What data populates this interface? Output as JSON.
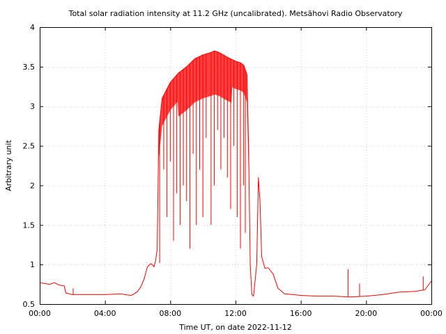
{
  "chart_data": {
    "type": "line",
    "title": "Total solar radiation intensity at 11.2 GHz (uncalibrated). Metsähovi Radio Observatory",
    "xlabel": "Time UT, on date 2022-11-12",
    "ylabel": "Arbitrary unit",
    "xlim": [
      0,
      24
    ],
    "ylim": [
      0.5,
      4
    ],
    "x_ticks": [
      0,
      4,
      8,
      12,
      16,
      20,
      24
    ],
    "x_tick_labels": [
      "00:00",
      "04:00",
      "08:00",
      "12:00",
      "16:00",
      "20:00",
      "00:00"
    ],
    "y_ticks": [
      0.5,
      1,
      1.5,
      2,
      2.5,
      3,
      3.5,
      4
    ],
    "y_tick_labels": [
      "0.5",
      "1",
      "1.5",
      "2",
      "2.5",
      "3",
      "3.5",
      "4"
    ],
    "grid": true,
    "legend": "none",
    "series": [
      {
        "color": "#ff0000",
        "x": [
          0.0,
          0.3,
          0.6,
          0.9,
          1.2,
          1.5,
          1.6,
          2.0,
          3.0,
          4.0,
          5.0,
          5.2,
          5.6,
          5.8,
          6.0,
          6.2,
          6.4,
          6.6,
          6.8,
          6.9,
          7.0,
          7.1,
          7.2,
          7.3,
          7.5,
          8.0,
          8.5,
          9.0,
          9.5,
          10.0,
          10.5,
          10.7,
          11.0,
          11.5,
          12.0,
          12.3,
          12.5,
          12.7,
          12.8,
          12.9,
          13.0,
          13.1,
          13.3,
          13.4,
          13.5,
          13.6,
          13.8,
          14.0,
          14.3,
          14.6,
          15.0,
          16.0,
          17.0,
          18.0,
          19.0,
          20.0,
          21.0,
          22.0,
          23.0,
          23.6,
          24.0
        ],
        "y": [
          0.77,
          0.76,
          0.75,
          0.77,
          0.74,
          0.73,
          0.64,
          0.62,
          0.62,
          0.62,
          0.63,
          0.62,
          0.61,
          0.63,
          0.66,
          0.72,
          0.82,
          0.97,
          1.01,
          1.0,
          0.97,
          1.05,
          1.2,
          2.7,
          3.1,
          3.3,
          3.42,
          3.5,
          3.6,
          3.65,
          3.68,
          3.7,
          3.68,
          3.62,
          3.57,
          3.55,
          3.52,
          3.4,
          2.5,
          1.0,
          0.62,
          0.6,
          1.0,
          2.1,
          1.8,
          1.1,
          0.95,
          0.96,
          0.88,
          0.7,
          0.63,
          0.61,
          0.6,
          0.6,
          0.59,
          0.6,
          0.62,
          0.65,
          0.66,
          0.68,
          0.79
        ]
      }
    ],
    "dips": [
      {
        "x": 7.35,
        "y": 1.02
      },
      {
        "x": 7.6,
        "y": 2.2
      },
      {
        "x": 7.8,
        "y": 1.6
      },
      {
        "x": 8.0,
        "y": 2.3
      },
      {
        "x": 8.2,
        "y": 1.3
      },
      {
        "x": 8.4,
        "y": 1.9
      },
      {
        "x": 8.6,
        "y": 1.5
      },
      {
        "x": 8.8,
        "y": 2.0
      },
      {
        "x": 9.0,
        "y": 1.8
      },
      {
        "x": 9.2,
        "y": 1.2
      },
      {
        "x": 9.4,
        "y": 2.4
      },
      {
        "x": 9.6,
        "y": 1.5
      },
      {
        "x": 9.8,
        "y": 2.2
      },
      {
        "x": 10.0,
        "y": 1.6
      },
      {
        "x": 10.2,
        "y": 2.6
      },
      {
        "x": 10.5,
        "y": 1.5
      },
      {
        "x": 10.7,
        "y": 2.0
      },
      {
        "x": 10.9,
        "y": 2.7
      },
      {
        "x": 11.1,
        "y": 2.2
      },
      {
        "x": 11.3,
        "y": 2.6
      },
      {
        "x": 11.5,
        "y": 2.1
      },
      {
        "x": 11.7,
        "y": 1.7
      },
      {
        "x": 11.9,
        "y": 2.5
      },
      {
        "x": 12.1,
        "y": 1.6
      },
      {
        "x": 12.3,
        "y": 1.2
      },
      {
        "x": 12.5,
        "y": 2.0
      },
      {
        "x": 12.6,
        "y": 1.4
      }
    ],
    "spikes": [
      {
        "x": 2.05,
        "y": 0.7
      },
      {
        "x": 18.9,
        "y": 0.94
      },
      {
        "x": 19.6,
        "y": 0.76
      },
      {
        "x": 23.5,
        "y": 0.85
      }
    ]
  }
}
